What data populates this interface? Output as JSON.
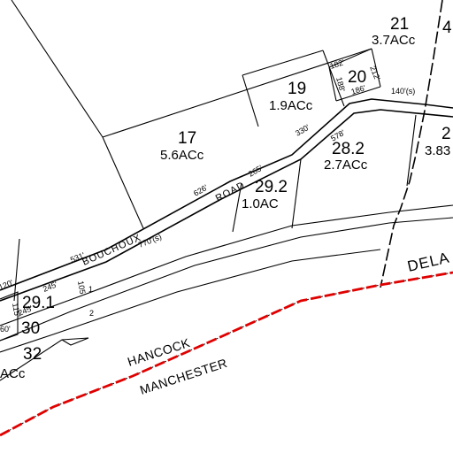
{
  "parcels": [
    {
      "id": "p21",
      "number": "21",
      "area": "3.7ACc"
    },
    {
      "id": "p20",
      "number": "20",
      "area": ""
    },
    {
      "id": "p19",
      "number": "19",
      "area": "1.9ACc"
    },
    {
      "id": "p17",
      "number": "17",
      "area": "5.6ACc"
    },
    {
      "id": "p28_2",
      "number": "28.2",
      "area": "2.7ACc"
    },
    {
      "id": "p29_2",
      "number": "29.2",
      "area": "1.0AC"
    },
    {
      "id": "p29_1",
      "number": "29.1",
      "area": ""
    },
    {
      "id": "p30",
      "number": "30",
      "area": ""
    },
    {
      "id": "p32",
      "number": "32",
      "area": "ACc"
    },
    {
      "id": "p2x",
      "number": "2",
      "area": "3.83"
    },
    {
      "id": "p4x",
      "number": "4",
      "area": ""
    }
  ],
  "road": {
    "words": [
      "BOUCHOUX",
      "ROAD"
    ]
  },
  "dimensions": [
    "182'",
    "212'",
    "188'",
    "186'",
    "140'(s)",
    "330'",
    "578'",
    "265'",
    "626'",
    "531'",
    "770'(s)",
    "245'",
    "105'",
    "115'",
    "245'",
    "120'",
    "60'"
  ],
  "misc_labels": [
    "1",
    "2"
  ],
  "towns": [
    "HANCOCK",
    "MANCHESTER"
  ],
  "river": "DELA",
  "colors": {
    "boundary": "#e00000",
    "lines": "#000000",
    "background": "#ffffff"
  }
}
